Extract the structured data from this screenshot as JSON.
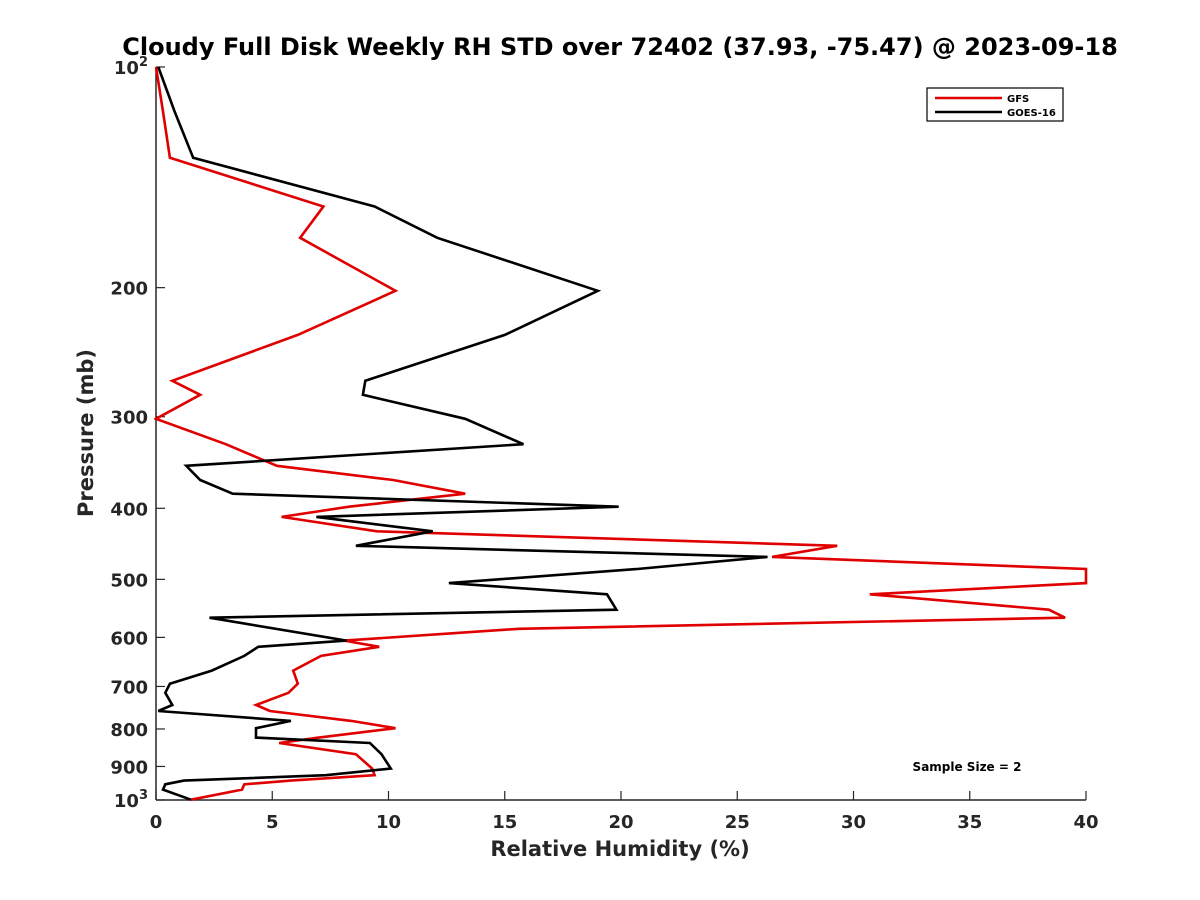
{
  "chart_data": {
    "type": "line",
    "title": "Cloudy Full Disk Weekly RH STD over 72402 (37.93, -75.47) @ 2023-09-18",
    "xlabel": "Relative Humidity (%)",
    "ylabel": "Pressure (mb)",
    "xlim": [
      0,
      40
    ],
    "ylim": [
      100,
      1000
    ],
    "yscale": "log",
    "yreversed": true,
    "grid": false,
    "legend_position": "top-right",
    "x_ticks": [
      "0",
      "5",
      "10",
      "15",
      "20",
      "25",
      "30",
      "35",
      "40"
    ],
    "y_ticks": [
      {
        "value": 100,
        "base": "10",
        "exp": "2"
      },
      {
        "value": 200,
        "label": "200"
      },
      {
        "value": 300,
        "label": "300"
      },
      {
        "value": 400,
        "label": "400"
      },
      {
        "value": 500,
        "label": "500"
      },
      {
        "value": 600,
        "label": "600"
      },
      {
        "value": 700,
        "label": "700"
      },
      {
        "value": 800,
        "label": "800"
      },
      {
        "value": 900,
        "label": "900"
      },
      {
        "value": 1000,
        "base": "10",
        "exp": "3"
      }
    ],
    "annotation": "Sample Size = 2",
    "series": [
      {
        "name": "GFS",
        "color": "#e00000",
        "points": [
          [
            0.0,
            100
          ],
          [
            0.3,
            115
          ],
          [
            0.6,
            133
          ],
          [
            7.2,
            155
          ],
          [
            6.2,
            171
          ],
          [
            10.3,
            202
          ],
          [
            6.1,
            232
          ],
          [
            0.7,
            268
          ],
          [
            1.9,
            280
          ],
          [
            0.0,
            302
          ],
          [
            3.0,
            327
          ],
          [
            5.2,
            350
          ],
          [
            10.2,
            366
          ],
          [
            13.3,
            382
          ],
          [
            8.3,
            398
          ],
          [
            5.4,
            411
          ],
          [
            9.5,
            430
          ],
          [
            29.3,
            450
          ],
          [
            26.5,
            466
          ],
          [
            40.0,
            484
          ],
          [
            40.0,
            506
          ],
          [
            30.7,
            524
          ],
          [
            38.4,
            550
          ],
          [
            39.1,
            564
          ],
          [
            15.6,
            584
          ],
          [
            8.1,
            606
          ],
          [
            9.6,
            618
          ],
          [
            7.1,
            636
          ],
          [
            5.9,
            666
          ],
          [
            6.1,
            694
          ],
          [
            5.7,
            714
          ],
          [
            4.3,
            742
          ],
          [
            4.9,
            756
          ],
          [
            8.4,
            780
          ],
          [
            10.3,
            798
          ],
          [
            7.0,
            822
          ],
          [
            5.3,
            836
          ],
          [
            8.6,
            866
          ],
          [
            9.3,
            906
          ],
          [
            9.4,
            925
          ],
          [
            5.8,
            941
          ],
          [
            3.8,
            952
          ],
          [
            3.7,
            968
          ],
          [
            1.5,
            999
          ]
        ]
      },
      {
        "name": "GOES-16",
        "color": "#000000",
        "points": [
          [
            0.1,
            100
          ],
          [
            0.8,
            115
          ],
          [
            1.6,
            133
          ],
          [
            9.4,
            155
          ],
          [
            12.1,
            171
          ],
          [
            19.0,
            202
          ],
          [
            15.0,
            232
          ],
          [
            9.0,
            268
          ],
          [
            8.9,
            280
          ],
          [
            13.3,
            302
          ],
          [
            15.8,
            327
          ],
          [
            1.3,
            350
          ],
          [
            1.9,
            366
          ],
          [
            3.3,
            382
          ],
          [
            19.9,
            398
          ],
          [
            6.9,
            411
          ],
          [
            11.9,
            430
          ],
          [
            8.6,
            450
          ],
          [
            26.3,
            466
          ],
          [
            20.7,
            484
          ],
          [
            12.6,
            506
          ],
          [
            19.4,
            524
          ],
          [
            19.8,
            550
          ],
          [
            2.3,
            564
          ],
          [
            8.2,
            606
          ],
          [
            4.4,
            618
          ],
          [
            3.8,
            636
          ],
          [
            2.4,
            666
          ],
          [
            0.6,
            694
          ],
          [
            0.4,
            714
          ],
          [
            0.7,
            742
          ],
          [
            0.1,
            756
          ],
          [
            5.8,
            780
          ],
          [
            4.3,
            798
          ],
          [
            4.3,
            822
          ],
          [
            9.2,
            836
          ],
          [
            9.7,
            866
          ],
          [
            10.1,
            906
          ],
          [
            7.3,
            925
          ],
          [
            1.2,
            941
          ],
          [
            0.4,
            952
          ],
          [
            0.3,
            968
          ],
          [
            1.5,
            999
          ]
        ]
      }
    ]
  }
}
